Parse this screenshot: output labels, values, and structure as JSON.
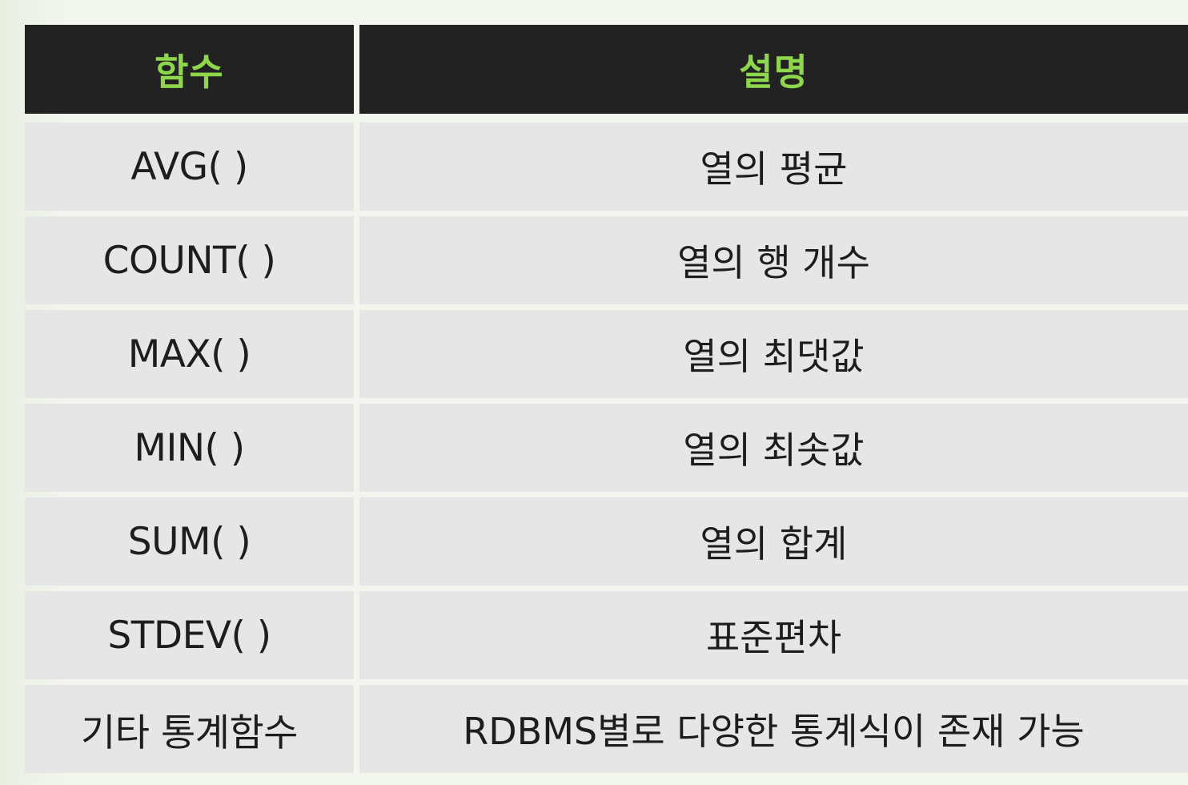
{
  "table": {
    "header": {
      "function": "함수",
      "description": "설명"
    },
    "rows": [
      {
        "function": "AVG( )",
        "description": "열의 평균"
      },
      {
        "function": "COUNT( )",
        "description": "열의 행 개수"
      },
      {
        "function": "MAX( )",
        "description": "열의 최댓값"
      },
      {
        "function": "MIN( )",
        "description": "열의 최솟값"
      },
      {
        "function": "SUM( )",
        "description": "열의 합계"
      },
      {
        "function": "STDEV( )",
        "description": "표준편차"
      },
      {
        "function": "기타 통계함수",
        "description": "RDBMS별로 다양한 통계식이 존재 가능"
      }
    ]
  },
  "colors": {
    "header_background": "#222222",
    "header_text": "#8ed64c",
    "row_background": "#e6e6e6",
    "row_text": "#1d1d1d",
    "page_background": "#f1f5ec"
  }
}
